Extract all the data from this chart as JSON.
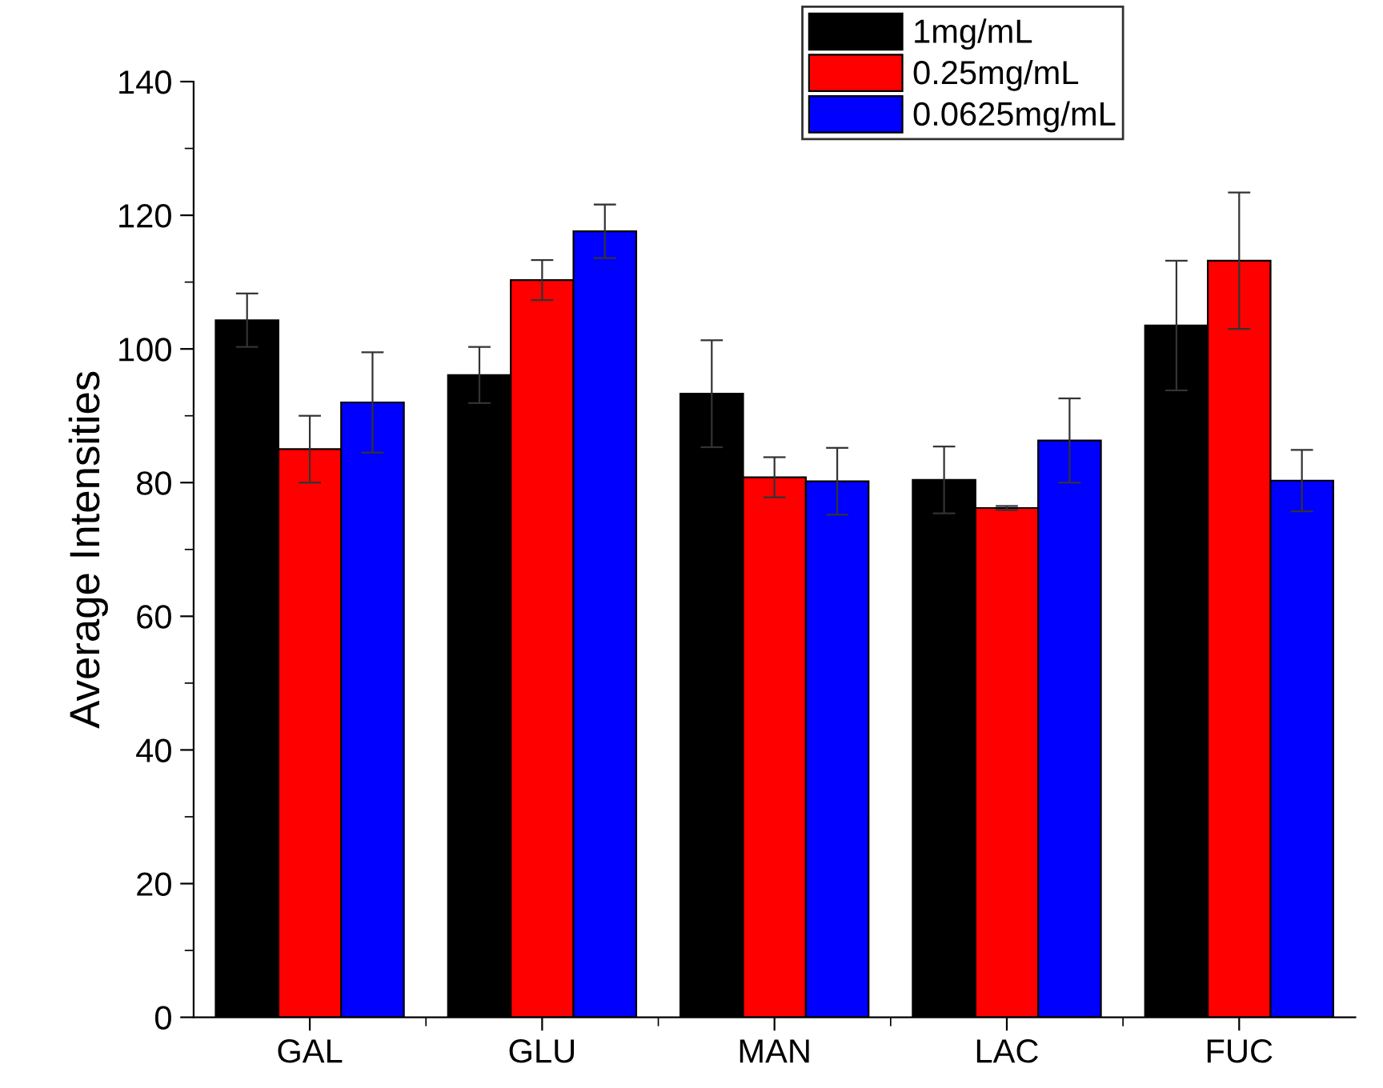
{
  "chart_data": {
    "type": "bar",
    "ylabel": "Average Intensities",
    "categories": [
      "GAL",
      "GLU",
      "MAN",
      "LAC",
      "FUC"
    ],
    "series": [
      {
        "name": "1mg/mL",
        "color": "#000000",
        "values": [
          104.3,
          96.1,
          93.3,
          80.4,
          103.5
        ],
        "errors": [
          4,
          4.2,
          8,
          5,
          9.7
        ]
      },
      {
        "name": "0.25mg/mL",
        "color": "#ff0000",
        "values": [
          85,
          110.3,
          80.8,
          76.2,
          113.2
        ],
        "errors": [
          5,
          3,
          3,
          0.3,
          10.2
        ]
      },
      {
        "name": "0.0625mg/mL",
        "color": "#0000ff",
        "values": [
          92,
          117.6,
          80.2,
          86.3,
          80.3
        ],
        "errors": [
          7.5,
          4,
          5,
          6.3,
          4.6
        ]
      }
    ],
    "ylim": [
      0,
      140
    ],
    "yticks": [
      0,
      20,
      40,
      60,
      80,
      100,
      120,
      140
    ],
    "grid": false,
    "legend": "top right"
  }
}
